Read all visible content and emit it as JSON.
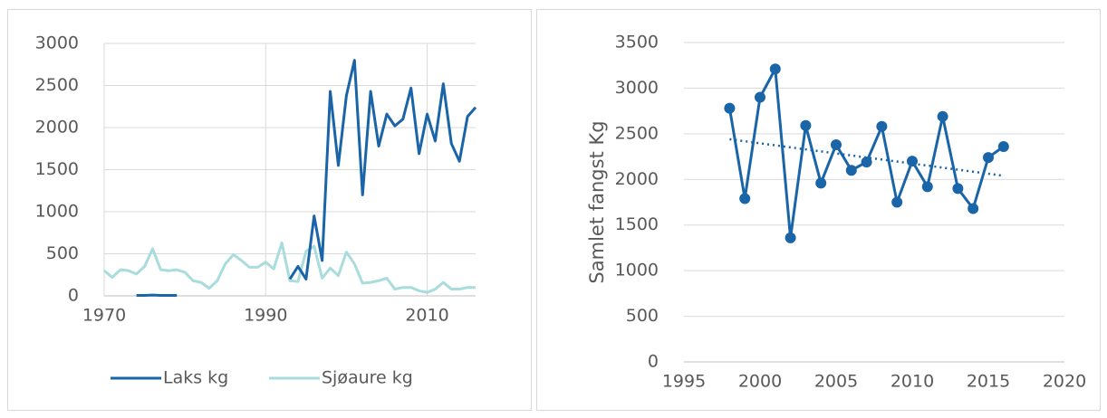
{
  "chart_data": [
    {
      "type": "line",
      "x": [
        1970,
        1971,
        1972,
        1973,
        1974,
        1975,
        1976,
        1977,
        1978,
        1979,
        1980,
        1981,
        1982,
        1983,
        1984,
        1985,
        1986,
        1987,
        1988,
        1989,
        1990,
        1991,
        1992,
        1993,
        1994,
        1995,
        1996,
        1997,
        1998,
        1999,
        2000,
        2001,
        2002,
        2003,
        2004,
        2005,
        2006,
        2007,
        2008,
        2009,
        2010,
        2011,
        2012,
        2013,
        2014,
        2015,
        2016
      ],
      "series": [
        {
          "name": "Laks kg",
          "color": "#1a64a8",
          "values": [
            null,
            null,
            null,
            null,
            5,
            5,
            10,
            5,
            5,
            5,
            null,
            null,
            null,
            null,
            null,
            null,
            null,
            null,
            null,
            null,
            null,
            null,
            null,
            200,
            350,
            200,
            950,
            420,
            2430,
            1550,
            2380,
            2800,
            1200,
            2430,
            1780,
            2160,
            2020,
            2100,
            2470,
            1690,
            2160,
            1840,
            2520,
            1810,
            1600,
            2130,
            2240
          ]
        },
        {
          "name": "Sjøaure kg",
          "color": "#a9dcdc",
          "values": [
            300,
            220,
            310,
            300,
            260,
            350,
            560,
            310,
            300,
            310,
            280,
            180,
            160,
            90,
            180,
            380,
            490,
            420,
            340,
            340,
            400,
            320,
            630,
            180,
            170,
            530,
            590,
            210,
            330,
            240,
            520,
            380,
            150,
            160,
            180,
            210,
            80,
            100,
            100,
            60,
            40,
            80,
            160,
            80,
            80,
            100,
            100
          ]
        }
      ],
      "xlim": [
        1970,
        2016
      ],
      "xticks": [
        1970,
        1990,
        2010
      ],
      "ylim": [
        0,
        3000
      ],
      "yticks": [
        0,
        500,
        1000,
        1500,
        2000,
        2500,
        3000
      ],
      "grid": true,
      "legend": "bottom"
    },
    {
      "type": "scatter-line",
      "y_label": "Samlet fangst Kg",
      "x": [
        1998,
        1999,
        2000,
        2001,
        2002,
        2003,
        2004,
        2005,
        2006,
        2007,
        2008,
        2009,
        2010,
        2011,
        2012,
        2013,
        2014,
        2015,
        2016
      ],
      "series": [
        {
          "color": "#1a64a8",
          "values": [
            2780,
            1790,
            2900,
            3210,
            1360,
            2590,
            1960,
            2380,
            2100,
            2190,
            2580,
            1750,
            2200,
            1920,
            2690,
            1900,
            1680,
            2240,
            2360
          ]
        }
      ],
      "trendline": {
        "x": [
          1998,
          2016
        ],
        "values": [
          2440,
          2040
        ],
        "color": "#1a64a8"
      },
      "xlim": [
        1995,
        2020
      ],
      "xticks": [
        1995,
        2000,
        2005,
        2010,
        2015,
        2020
      ],
      "ylim": [
        0,
        3500
      ],
      "yticks": [
        0,
        500,
        1000,
        1500,
        2000,
        2500,
        3000,
        3500
      ],
      "grid": true
    }
  ]
}
